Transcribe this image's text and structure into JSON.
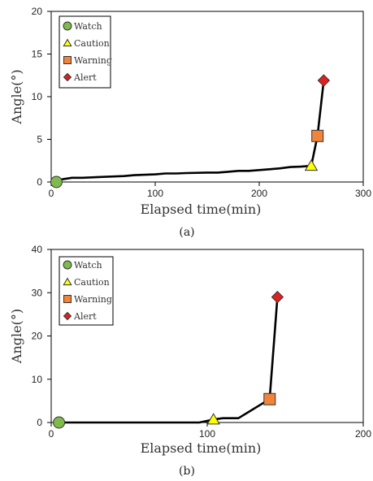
{
  "chart_data": [
    {
      "type": "line",
      "caption": "(a)",
      "xlabel": "Elapsed time(min)",
      "ylabel": "Angle(°)",
      "xlim": [
        0,
        300
      ],
      "ylim": [
        0,
        20
      ],
      "xticks": [
        0,
        100,
        200,
        300
      ],
      "yticks": [
        0,
        5,
        10,
        15,
        20
      ],
      "grid": false,
      "legend_position": "top-left",
      "line": {
        "x": [
          5,
          10,
          20,
          30,
          50,
          70,
          80,
          100,
          110,
          120,
          130,
          150,
          160,
          170,
          180,
          190,
          200,
          210,
          220,
          230,
          240,
          250,
          256,
          262
        ],
        "y": [
          0,
          0.3,
          0.5,
          0.5,
          0.6,
          0.7,
          0.8,
          0.9,
          1.0,
          1.0,
          1.05,
          1.1,
          1.1,
          1.2,
          1.3,
          1.3,
          1.4,
          1.5,
          1.6,
          1.75,
          1.8,
          1.9,
          5.4,
          11.9
        ]
      },
      "markers": [
        {
          "level": "Watch",
          "x": 5,
          "y": 0,
          "shape": "circle",
          "color": "#7fba4d"
        },
        {
          "level": "Caution",
          "x": 250,
          "y": 1.9,
          "shape": "triangle",
          "color": "#ffff00"
        },
        {
          "level": "Warning",
          "x": 256,
          "y": 5.4,
          "shape": "square",
          "color": "#f0843a"
        },
        {
          "level": "Alert",
          "x": 262,
          "y": 11.9,
          "shape": "diamond",
          "color": "#e02020"
        }
      ],
      "legend": [
        {
          "label": "Watch",
          "shape": "circle",
          "color": "#7fba4d"
        },
        {
          "label": "Caution",
          "shape": "triangle",
          "color": "#ffff00"
        },
        {
          "label": "Warning",
          "shape": "square",
          "color": "#f0843a"
        },
        {
          "label": "Alert",
          "shape": "diamond",
          "color": "#e02020"
        }
      ]
    },
    {
      "type": "line",
      "caption": "(b)",
      "xlabel": "Elapsed time(min)",
      "ylabel": "Angle(°)",
      "xlim": [
        0,
        200
      ],
      "ylim": [
        0,
        40
      ],
      "xticks": [
        0,
        100,
        200
      ],
      "yticks": [
        0,
        10,
        20,
        30,
        40
      ],
      "grid": false,
      "legend_position": "top-left",
      "line": {
        "x": [
          5,
          20,
          50,
          80,
          95,
          104,
          110,
          120,
          140,
          145
        ],
        "y": [
          0,
          0,
          0,
          0,
          0,
          0.7,
          1.0,
          1.0,
          5.4,
          29.0
        ]
      },
      "markers": [
        {
          "level": "Watch",
          "x": 5,
          "y": 0,
          "shape": "circle",
          "color": "#7fba4d"
        },
        {
          "level": "Caution",
          "x": 104,
          "y": 0.7,
          "shape": "triangle",
          "color": "#ffff00"
        },
        {
          "level": "Warning",
          "x": 140,
          "y": 5.4,
          "shape": "square",
          "color": "#f0843a"
        },
        {
          "level": "Alert",
          "x": 145,
          "y": 29.0,
          "shape": "diamond",
          "color": "#e02020"
        }
      ],
      "legend": [
        {
          "label": "Watch",
          "shape": "circle",
          "color": "#7fba4d"
        },
        {
          "label": "Caution",
          "shape": "triangle",
          "color": "#ffff00"
        },
        {
          "label": "Warning",
          "shape": "square",
          "color": "#f0843a"
        },
        {
          "label": "Alert",
          "shape": "diamond",
          "color": "#e02020"
        }
      ]
    }
  ]
}
